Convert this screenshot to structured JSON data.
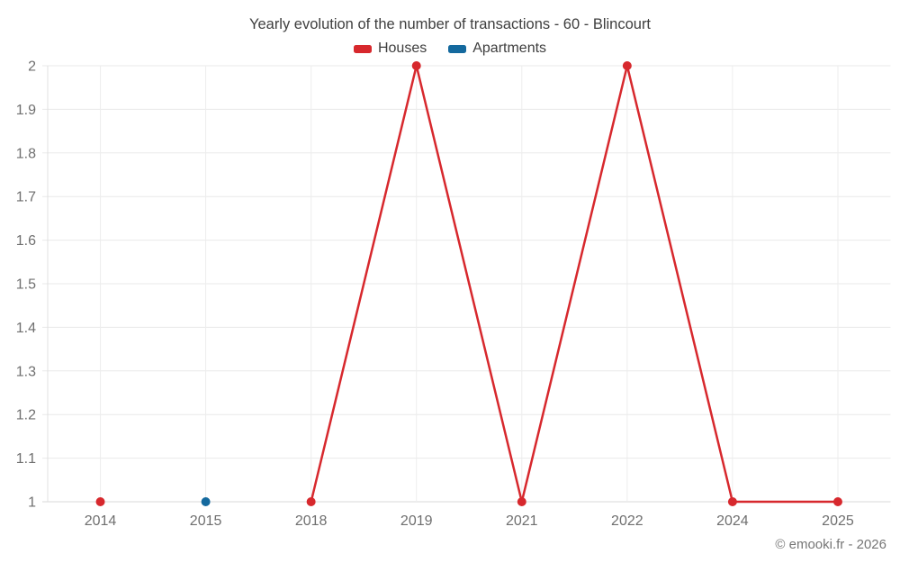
{
  "footer": {
    "copyright": "© emooki.fr - 2026"
  },
  "chart_data": {
    "type": "line",
    "title": "Yearly evolution of the number of transactions - 60 - Blincourt",
    "xlabel": "",
    "ylabel": "",
    "categories": [
      "2014",
      "2015",
      "2018",
      "2019",
      "2021",
      "2022",
      "2024",
      "2025"
    ],
    "series": [
      {
        "name": "Houses",
        "color": "#d7282d",
        "values": [
          1,
          null,
          1,
          2,
          1,
          2,
          1,
          1
        ]
      },
      {
        "name": "Apartments",
        "color": "#14699e",
        "values": [
          null,
          1,
          null,
          null,
          null,
          null,
          null,
          null
        ]
      }
    ],
    "ylim": [
      1,
      2
    ],
    "yticks": [
      1,
      1.1,
      1.2,
      1.3,
      1.4,
      1.5,
      1.6,
      1.7,
      1.8,
      1.9,
      2
    ],
    "grid": true,
    "legend_position": "top"
  }
}
